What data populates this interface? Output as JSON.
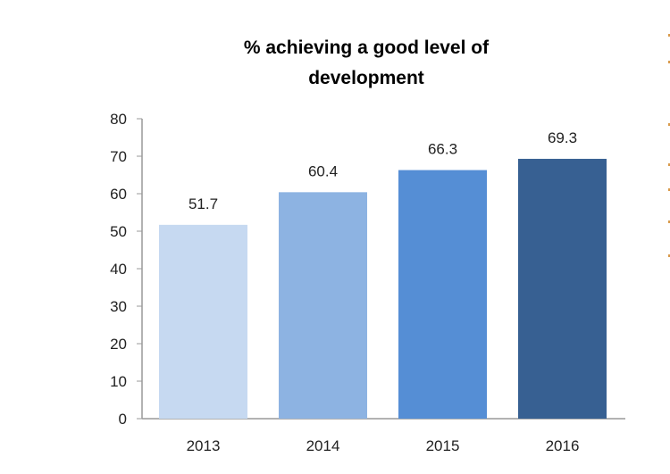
{
  "chart_data": {
    "type": "bar",
    "title": [
      "% achieving a good level of",
      "development"
    ],
    "categories": [
      "2013",
      "2014",
      "2015",
      "2016"
    ],
    "values": [
      51.7,
      60.4,
      66.3,
      69.3
    ],
    "data_labels": [
      "51.7",
      "60.4",
      "66.3",
      "69.3"
    ],
    "colors": [
      "#c6d9f1",
      "#8db3e2",
      "#558ed5",
      "#376092"
    ],
    "ylim": [
      0,
      80
    ],
    "yticks": [
      "0",
      "10",
      "20",
      "30",
      "40",
      "50",
      "60",
      "70",
      "80"
    ],
    "xlabel": "",
    "ylabel": "",
    "grid": false,
    "legend": "none"
  }
}
